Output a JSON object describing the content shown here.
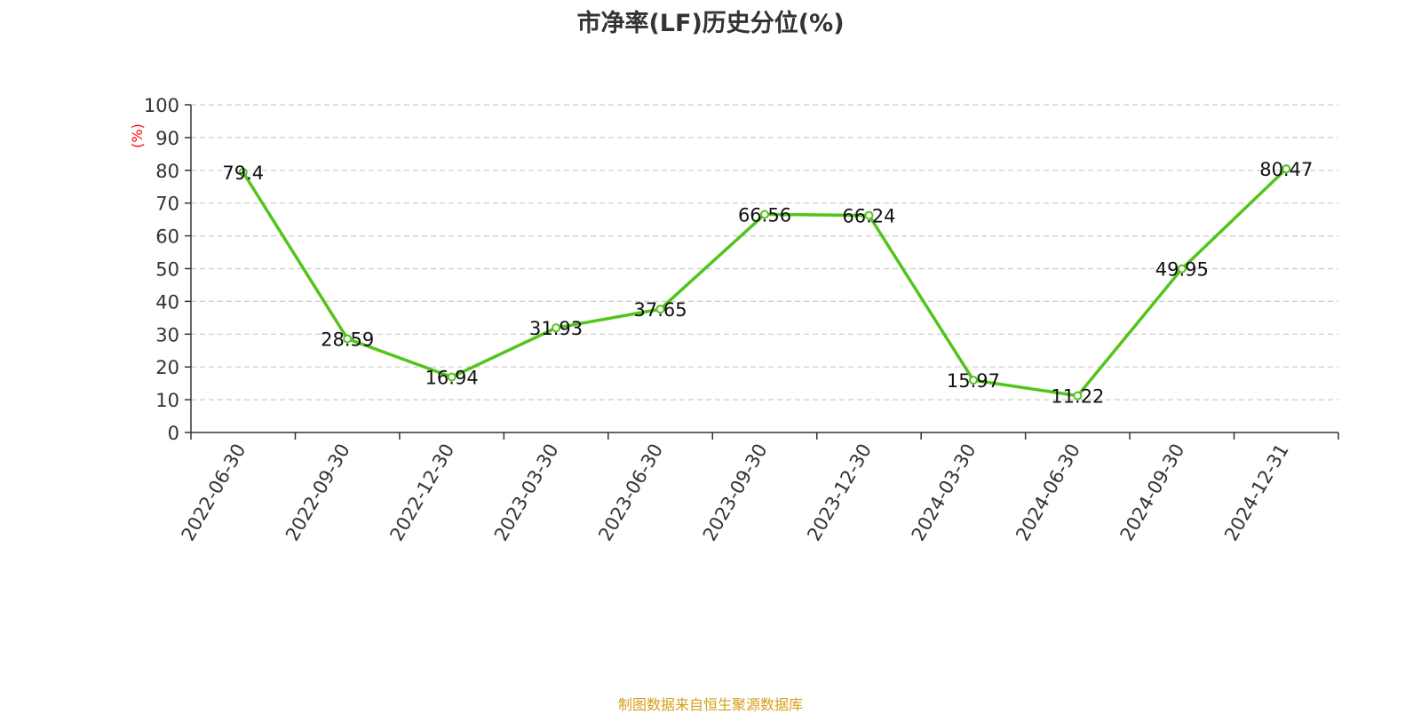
{
  "chart_data": {
    "type": "line",
    "title": "市净率(LF)历史分位(%)",
    "ylabel": "(%)",
    "xlabel": "",
    "categories": [
      "2022-06-30",
      "2022-09-30",
      "2022-12-30",
      "2023-03-30",
      "2023-06-30",
      "2023-09-30",
      "2023-12-30",
      "2024-03-30",
      "2024-06-30",
      "2024-09-30",
      "2024-12-31"
    ],
    "series": [
      {
        "values": [
          79.4,
          28.59,
          16.94,
          31.93,
          37.65,
          66.56,
          66.24,
          15.97,
          11.22,
          49.95,
          80.47
        ],
        "labels": [
          "79.4",
          "28.59",
          "16.94",
          "31.93",
          "37.65",
          "66.56",
          "66.24",
          "15.97",
          "11.22",
          "49.95",
          "80.47"
        ]
      }
    ],
    "ylim": [
      0,
      100
    ],
    "yticks": [
      "0",
      "10",
      "20",
      "30",
      "40",
      "50",
      "60",
      "70",
      "80",
      "90",
      "100"
    ],
    "grid": true,
    "colors": {
      "line": "#52c41a",
      "ylabel": "#ff0000",
      "source": "#d4a017",
      "grid": "#cccccc",
      "axis": "#333333"
    },
    "source": "制图数据来自恒生聚源数据库"
  }
}
